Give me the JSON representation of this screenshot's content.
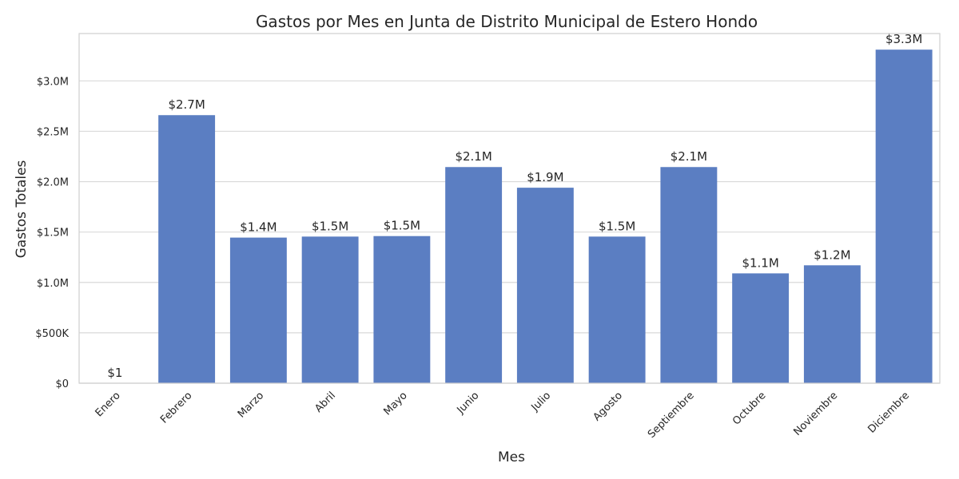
{
  "chart_data": {
    "type": "bar",
    "title": "Gastos por Mes en Junta de Distrito Municipal de Estero Hondo",
    "xlabel": "Mes",
    "ylabel": "Gastos Totales",
    "categories": [
      "Enero",
      "Febrero",
      "Marzo",
      "Abril",
      "Mayo",
      "Junio",
      "Julio",
      "Agosto",
      "Septiembre",
      "Octubre",
      "Noviembre",
      "Diciembre"
    ],
    "values": [
      1,
      2660000,
      1445000,
      1455000,
      1460000,
      2145000,
      1940000,
      1455000,
      2145000,
      1090000,
      1170000,
      3310000
    ],
    "data_labels": [
      "$1",
      "$2.7M",
      "$1.4M",
      "$1.5M",
      "$1.5M",
      "$2.1M",
      "$1.9M",
      "$1.5M",
      "$2.1M",
      "$1.1M",
      "$1.2M",
      "$3.3M"
    ],
    "y_ticks": [
      0,
      500000,
      1000000,
      1500000,
      2000000,
      2500000,
      3000000
    ],
    "y_tick_labels": [
      "$0",
      "$500K",
      "$1.0M",
      "$1.5M",
      "$2.0M",
      "$2.5M",
      "$3.0M"
    ],
    "ylim": [
      0,
      3470000
    ],
    "grid": true,
    "bar_color": "#5b7ec2",
    "x_tick_rotation": 45
  }
}
